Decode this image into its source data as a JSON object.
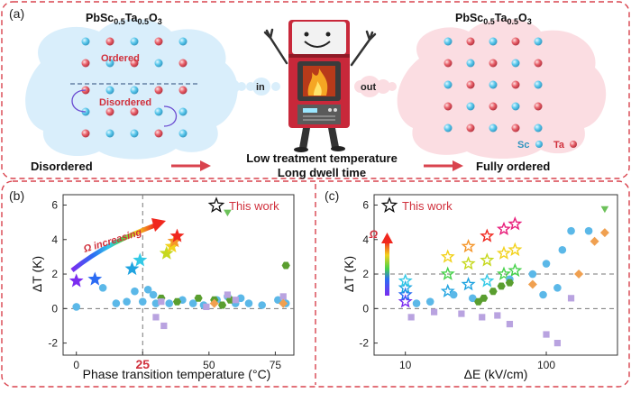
{
  "panel_a": {
    "label": "(a)",
    "left_title": "PbSc",
    "left_title_sub1": "0.5",
    "left_title_mid": "Ta",
    "left_title_sub2": "0.5",
    "left_title_end": "O",
    "left_title_sub3": "3",
    "ordered_label": "Ordered",
    "disordered_label": "Disordered",
    "in_label": "in",
    "out_label": "out",
    "legend_sc": "Sc",
    "legend_ta": "Ta",
    "bottom_left": "Disordered",
    "bottom_mid_line1": "Low treatment temperature",
    "bottom_mid_line2": "Long dwell time",
    "bottom_right": "Fully ordered",
    "colors": {
      "sc": "#5bc8ec",
      "ta": "#e8606a",
      "arrow": "#d9434e",
      "oven": "#c8283a"
    }
  },
  "panel_b": {
    "label": "(b)",
    "legend": "This work",
    "ylabel": "ΔT (K)",
    "xlabel": "Phase transition temperature (°C)",
    "highlight_tick": "25",
    "omega_label": "Ω increasing",
    "x_ticks": [
      "0",
      "25",
      "50",
      "75"
    ],
    "y_ticks": [
      "-2",
      "0",
      "2",
      "4",
      "6"
    ]
  },
  "panel_c": {
    "label": "(c)",
    "legend": "This work",
    "ylabel": "ΔT (K)",
    "xlabel": "ΔE (kV/cm)",
    "omega_label": "Ω",
    "x_ticks": [
      "10",
      "100"
    ],
    "y_ticks": [
      "-2",
      "0",
      "2",
      "4",
      "6"
    ]
  },
  "chart_data": [
    {
      "type": "scatter",
      "xlabel": "Phase transition temperature (°C)",
      "ylabel": "ΔT (K)",
      "xlim": [
        -5,
        82
      ],
      "ylim": [
        -2.7,
        6.6
      ],
      "grid": false,
      "reference_lines": {
        "x": 25,
        "y": 0
      },
      "series": [
        {
          "name": "This work",
          "marker": "star",
          "points": [
            [
              0,
              1.6
            ],
            [
              7,
              1.7
            ],
            [
              21,
              2.3
            ],
            [
              24,
              2.8
            ],
            [
              34,
              3.2
            ],
            [
              36,
              3.6
            ],
            [
              37,
              3.9
            ],
            [
              38,
              4.2
            ]
          ]
        },
        {
          "marker": "circle",
          "points": [
            [
              0,
              0.1
            ],
            [
              10,
              1.2
            ],
            [
              15,
              0.3
            ],
            [
              19,
              0.4
            ],
            [
              22,
              1.0
            ],
            [
              25,
              0.4
            ],
            [
              27,
              1.1
            ],
            [
              29,
              0.8
            ],
            [
              30,
              0.3
            ],
            [
              35,
              0.3
            ],
            [
              40,
              0.5
            ],
            [
              44,
              0.3
            ],
            [
              48,
              0.2
            ],
            [
              53,
              0.5
            ],
            [
              57,
              0.7
            ],
            [
              60,
              0.3
            ],
            [
              62,
              0.6
            ],
            [
              65,
              0.3
            ],
            [
              70,
              0.2
            ],
            [
              76,
              0.5
            ],
            [
              79,
              0.3
            ]
          ]
        },
        {
          "marker": "hexagon",
          "points": [
            [
              32,
              0.6
            ],
            [
              38,
              0.4
            ],
            [
              46,
              0.6
            ],
            [
              52,
              0.5
            ],
            [
              55,
              0.2
            ],
            [
              58,
              0.5
            ],
            [
              79,
              2.5
            ]
          ]
        },
        {
          "marker": "square",
          "points": [
            [
              30,
              -0.5
            ],
            [
              32,
              0.4
            ],
            [
              33,
              -1.0
            ],
            [
              49,
              0.1
            ],
            [
              57,
              0.8
            ],
            [
              60,
              0.5
            ],
            [
              78,
              0.7
            ]
          ]
        },
        {
          "marker": "diamond",
          "points": [
            [
              52,
              0.3
            ],
            [
              78,
              0.3
            ]
          ]
        },
        {
          "marker": "triangle",
          "points": [
            [
              57,
              5.6
            ]
          ]
        }
      ]
    },
    {
      "type": "scatter",
      "xlabel": "ΔE (kV/cm)",
      "ylabel": "ΔT (K)",
      "x_scale": "log",
      "xlim": [
        6,
        320
      ],
      "ylim": [
        -2.7,
        6.6
      ],
      "grid": false,
      "reference_lines": {
        "y": [
          0,
          2
        ]
      },
      "series": [
        {
          "name": "This work",
          "marker": "star",
          "points": [
            [
              10,
              0.4
            ],
            [
              10,
              0.8
            ],
            [
              10,
              1.2
            ],
            [
              10,
              1.6
            ],
            [
              20,
              1.0
            ],
            [
              20,
              2.0
            ],
            [
              20,
              3.0
            ],
            [
              28,
              1.4
            ],
            [
              28,
              2.6
            ],
            [
              28,
              3.6
            ],
            [
              38,
              1.6
            ],
            [
              38,
              2.8
            ],
            [
              38,
              4.2
            ],
            [
              50,
              2.0
            ],
            [
              50,
              3.2
            ],
            [
              50,
              4.6
            ],
            [
              60,
              2.2
            ],
            [
              60,
              3.4
            ],
            [
              60,
              4.9
            ]
          ]
        },
        {
          "marker": "circle",
          "points": [
            [
              12,
              0.3
            ],
            [
              15,
              0.4
            ],
            [
              22,
              0.8
            ],
            [
              30,
              0.6
            ],
            [
              55,
              1.7
            ],
            [
              80,
              2.0
            ],
            [
              100,
              2.6
            ],
            [
              130,
              3.4
            ],
            [
              150,
              4.5
            ],
            [
              200,
              4.5
            ],
            [
              120,
              1.2
            ],
            [
              95,
              0.8
            ]
          ]
        },
        {
          "marker": "hexagon",
          "points": [
            [
              33,
              0.4
            ],
            [
              36,
              0.6
            ],
            [
              42,
              1.0
            ],
            [
              48,
              1.3
            ],
            [
              55,
              1.5
            ]
          ]
        },
        {
          "marker": "square",
          "points": [
            [
              11,
              -0.5
            ],
            [
              16,
              -0.2
            ],
            [
              25,
              -0.3
            ],
            [
              35,
              -0.5
            ],
            [
              45,
              -0.4
            ],
            [
              55,
              -0.9
            ],
            [
              100,
              -1.5
            ],
            [
              120,
              -2.0
            ],
            [
              150,
              0.6
            ]
          ]
        },
        {
          "marker": "diamond",
          "points": [
            [
              80,
              1.4
            ],
            [
              170,
              2.0
            ],
            [
              220,
              3.9
            ],
            [
              260,
              4.4
            ]
          ]
        },
        {
          "marker": "triangle",
          "points": [
            [
              260,
              5.8
            ]
          ]
        }
      ]
    }
  ]
}
